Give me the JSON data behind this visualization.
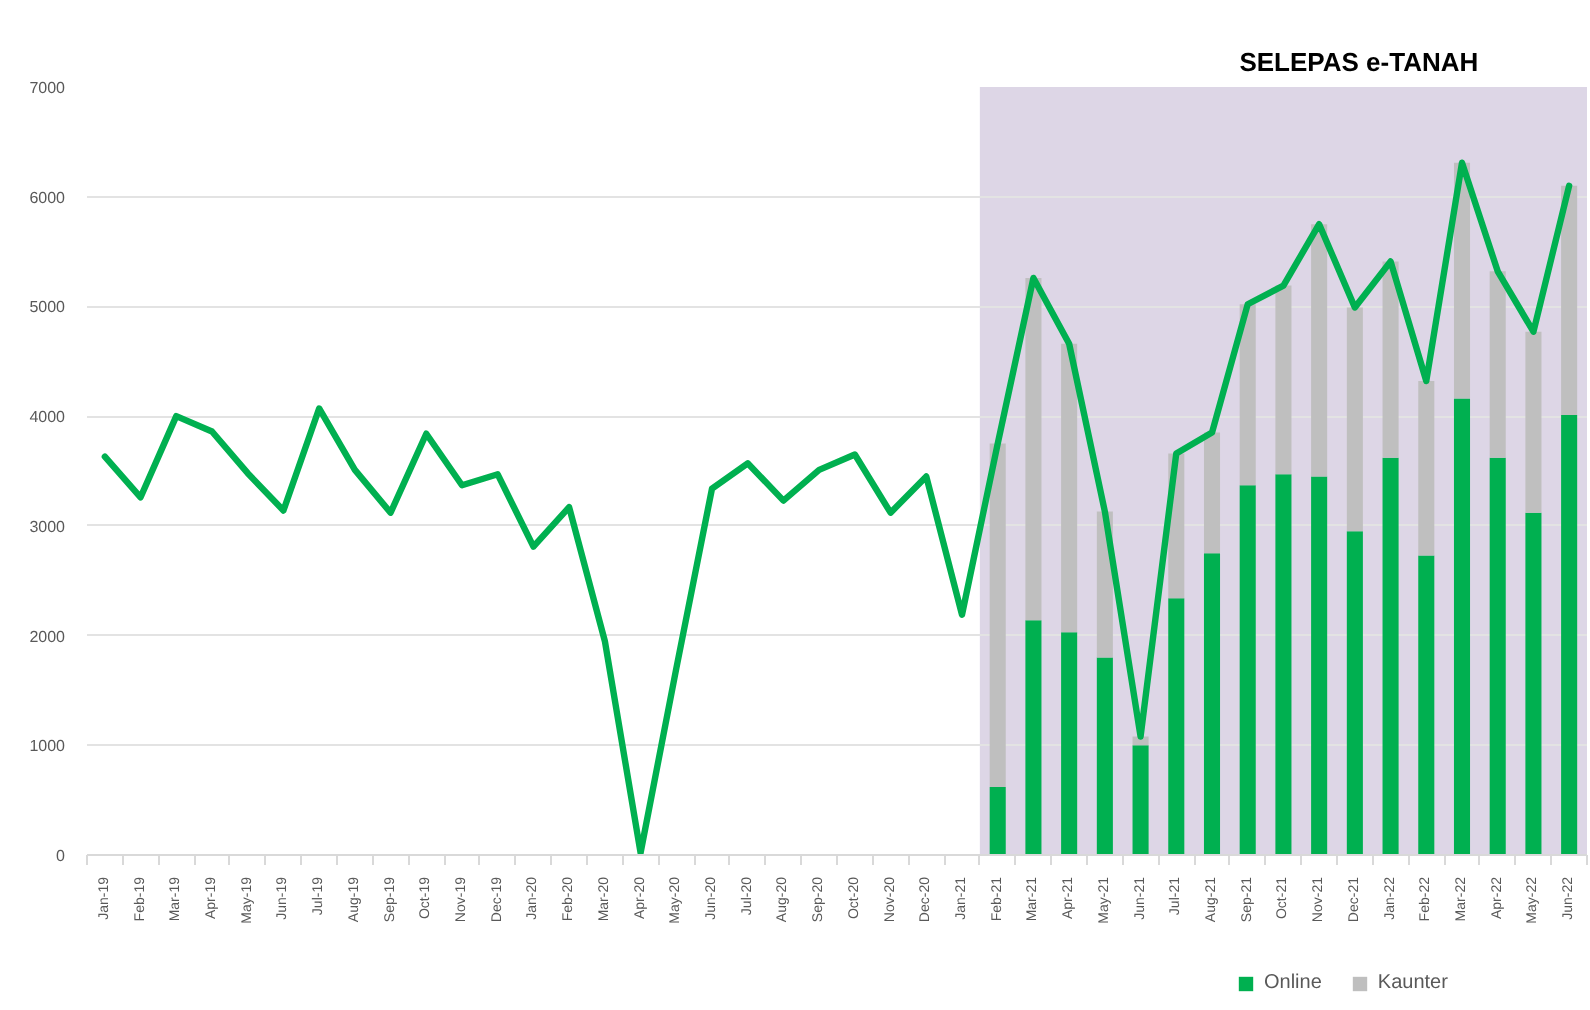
{
  "chart_data": {
    "type": "bar",
    "stacked": true,
    "categories": [
      "Jan-19",
      "Feb-19",
      "Mar-19",
      "Apr-19",
      "May-19",
      "Jun-19",
      "Jul-19",
      "Aug-19",
      "Sep-19",
      "Oct-19",
      "Nov-19",
      "Dec-19",
      "Jan-20",
      "Feb-20",
      "Mar-20",
      "Apr-20",
      "May-20",
      "Jun-20",
      "Jul-20",
      "Aug-20",
      "Sep-20",
      "Oct-20",
      "Nov-20",
      "Dec-20",
      "Jan-21",
      "Feb-21",
      "Mar-21",
      "Apr-21",
      "May-21",
      "Jun-21",
      "Jul-21",
      "Aug-21",
      "Sep-21",
      "Oct-21",
      "Nov-21",
      "Dec-21",
      "Jan-22",
      "Feb-22",
      "Mar-22",
      "Apr-22",
      "May-22",
      "Jun-22"
    ],
    "series": [
      {
        "name": "Online",
        "color": "#00b050",
        "values": [
          null,
          null,
          null,
          null,
          null,
          null,
          null,
          null,
          null,
          null,
          null,
          null,
          null,
          null,
          null,
          null,
          null,
          null,
          null,
          null,
          null,
          null,
          null,
          null,
          null,
          620,
          2140,
          2030,
          1800,
          1000,
          2340,
          2750,
          3370,
          3470,
          3450,
          2950,
          3620,
          2730,
          4160,
          3620,
          3120,
          4010
        ]
      },
      {
        "name": "Kaunter",
        "color": "#bfbfbf",
        "values": [
          null,
          null,
          null,
          null,
          null,
          null,
          null,
          null,
          null,
          null,
          null,
          null,
          null,
          null,
          null,
          null,
          null,
          null,
          null,
          null,
          null,
          null,
          null,
          null,
          null,
          3130,
          3120,
          2630,
          1330,
          80,
          1320,
          1100,
          1650,
          1720,
          2300,
          2040,
          1790,
          1590,
          2150,
          1700,
          1650,
          2090
        ]
      },
      {
        "type": "line",
        "color": "#00b050",
        "values": [
          3630,
          3260,
          4000,
          3860,
          3480,
          3140,
          4070,
          3510,
          3120,
          3840,
          3370,
          3470,
          2810,
          3170,
          1950,
          20,
          1700,
          3340,
          3570,
          3230,
          3510,
          3650,
          3120,
          3450,
          2190,
          3750,
          5260,
          4660,
          3130,
          1080,
          3660,
          3850,
          5020,
          5190,
          5750,
          4990,
          5410,
          4320,
          6310,
          5320,
          4770,
          6100
        ]
      }
    ],
    "ylim": [
      0,
      7000
    ],
    "yticks": [
      0,
      1000,
      2000,
      3000,
      4000,
      5000,
      6000,
      7000
    ],
    "grid": "y",
    "legend": "bottom",
    "bands": [
      {
        "axis": "x",
        "from": "Feb-21",
        "to": "Jun-22",
        "label": "SELEPAS e-TANAH",
        "color": "#ddd6e6"
      }
    ]
  }
}
